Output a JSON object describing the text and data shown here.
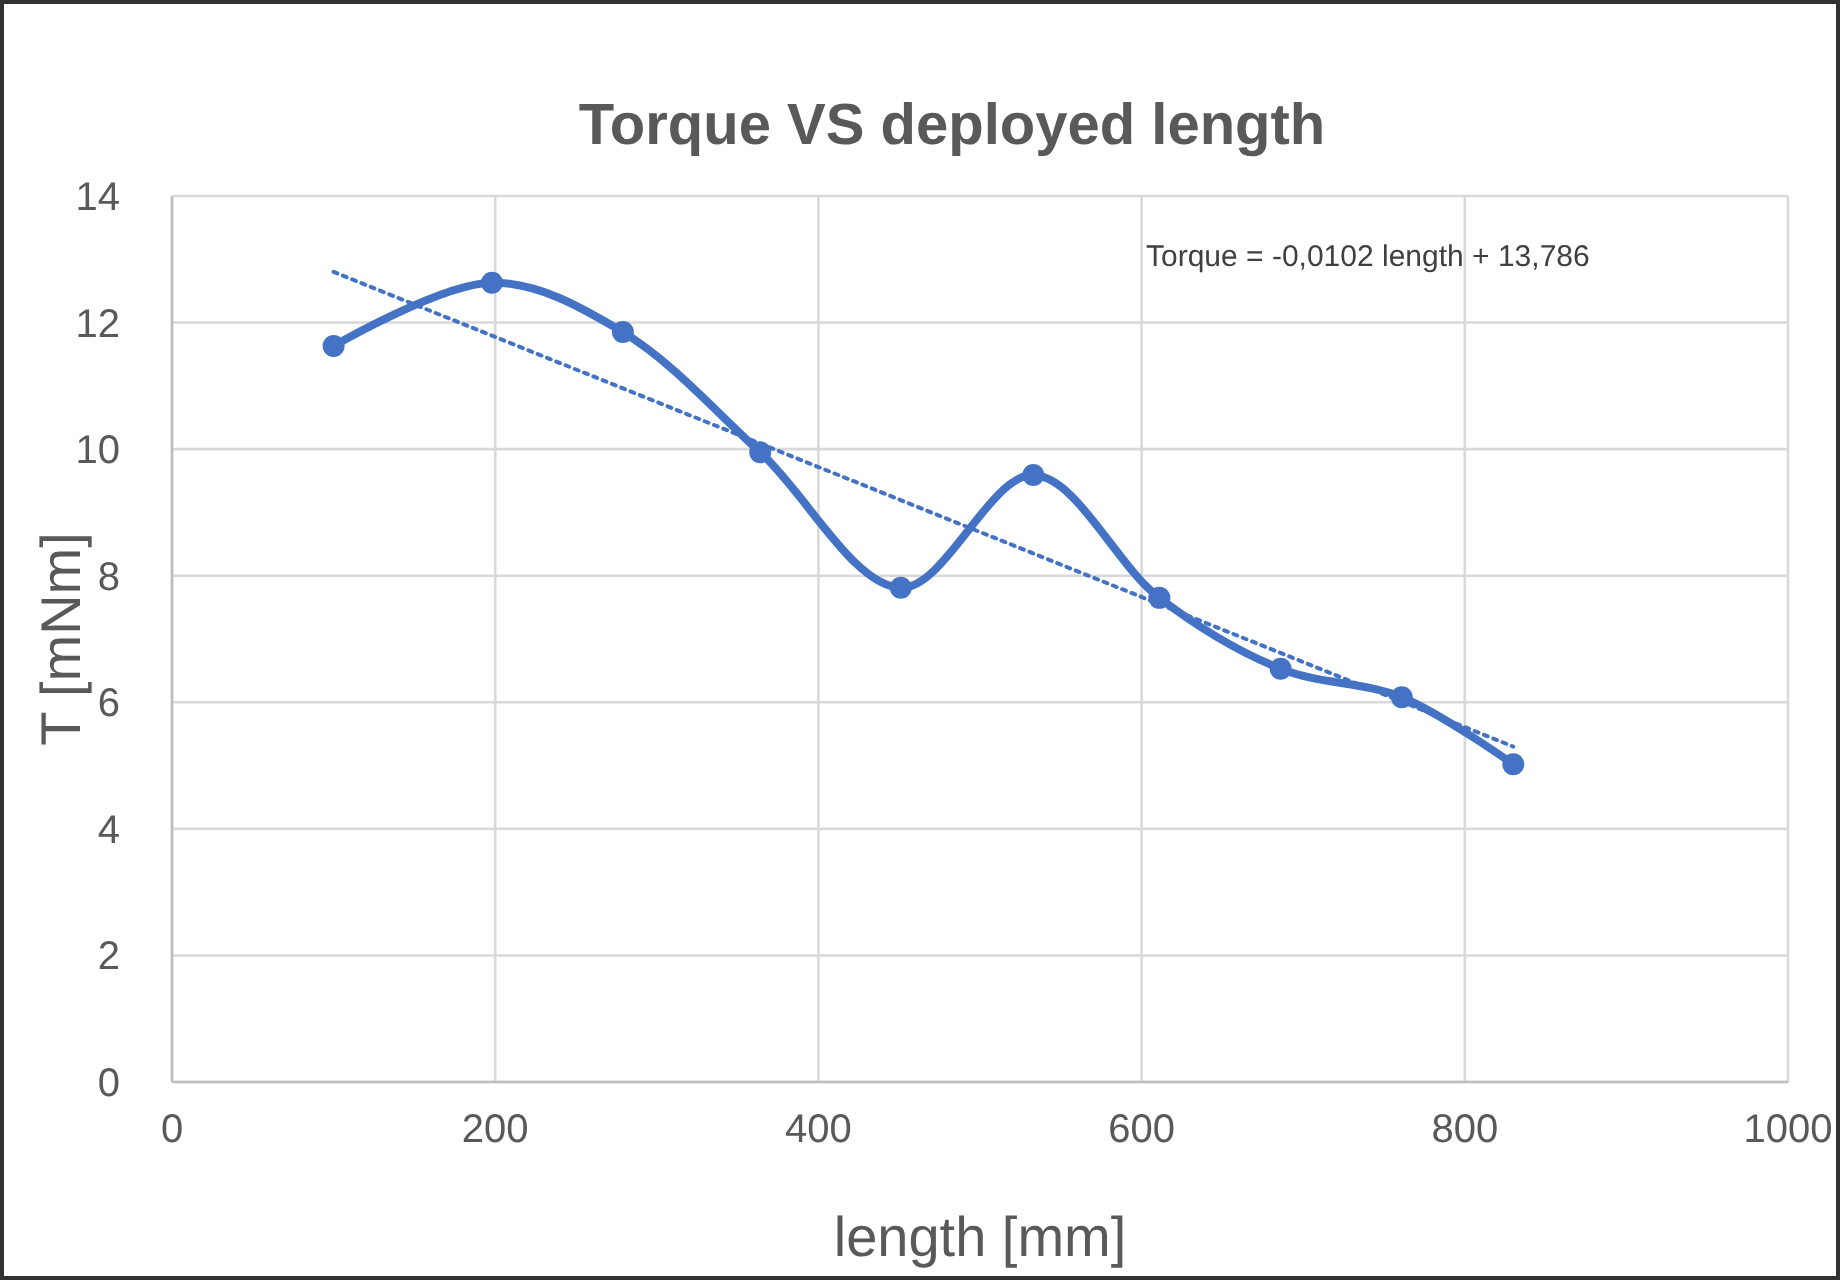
{
  "chart_data": {
    "type": "line",
    "title": "Torque VS deployed length",
    "xlabel": "length [mm]",
    "ylabel": "T [mNm]",
    "xlim": [
      0,
      1000
    ],
    "xticks": [
      0,
      200,
      400,
      600,
      800,
      1000
    ],
    "ylim": [
      0,
      14
    ],
    "yticks": [
      0,
      2,
      4,
      6,
      8,
      10,
      12,
      14
    ],
    "grid": true,
    "annotations": [
      "Torque = -0,0102 length + 13,786"
    ],
    "series": [
      {
        "color": "#4472c4",
        "marker": "circle",
        "line_style": "solid",
        "x": [
          100,
          198,
          279,
          364,
          451,
          533,
          611,
          686,
          761,
          830
        ],
        "values": [
          11.63,
          12.63,
          11.85,
          9.95,
          7.81,
          9.59,
          7.65,
          6.53,
          6.08,
          5.02
        ]
      },
      {
        "color": "#4472c4",
        "marker": "none",
        "line_style": "dotted",
        "x": [
          100,
          830
        ],
        "values": [
          12.8,
          5.3
        ]
      }
    ]
  }
}
